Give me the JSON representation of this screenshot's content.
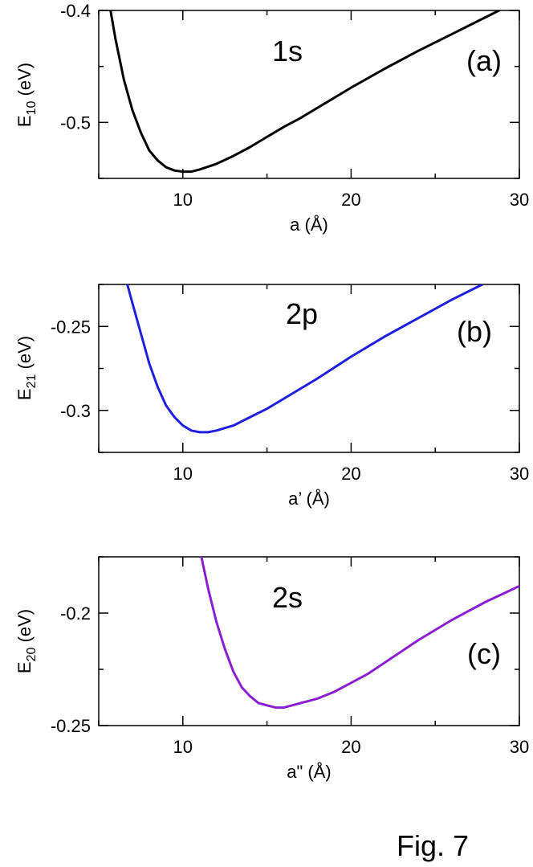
{
  "caption": "Fig. 7",
  "chart_data": [
    {
      "type": "line",
      "panel_tag": "(a)",
      "orbital_label": "1s",
      "xlabel": "a (Å)",
      "ylabel": {
        "main": "E",
        "sub": "10",
        "unit": " (eV)"
      },
      "xlim": [
        5,
        30
      ],
      "ylim": [
        -0.55,
        -0.4
      ],
      "xticks": [
        {
          "v": 10,
          "label": "10"
        },
        {
          "v": 20,
          "label": "20"
        },
        {
          "v": 30,
          "label": "30"
        }
      ],
      "yticks": [
        {
          "v": -0.4,
          "label": "-0.4"
        },
        {
          "v": -0.5,
          "label": "-0.5"
        }
      ],
      "color": "#000000",
      "series": [
        {
          "x": [
            5.7,
            6,
            6.5,
            7,
            7.5,
            8,
            8.5,
            9,
            9.5,
            10,
            10.5,
            11,
            12,
            13,
            14,
            15,
            16,
            17,
            18,
            20,
            22,
            24,
            26,
            28,
            28.8
          ],
          "y": [
            -0.4,
            -0.426,
            -0.462,
            -0.489,
            -0.509,
            -0.525,
            -0.534,
            -0.54,
            -0.543,
            -0.544,
            -0.544,
            -0.542,
            -0.537,
            -0.53,
            -0.522,
            -0.513,
            -0.504,
            -0.496,
            -0.487,
            -0.469,
            -0.452,
            -0.436,
            -0.421,
            -0.406,
            -0.4
          ]
        }
      ]
    },
    {
      "type": "line",
      "panel_tag": "(b)",
      "orbital_label": "2p",
      "xlabel": "a’ (Å)",
      "ylabel": {
        "main": "E",
        "sub": "21",
        "unit": " (eV)"
      },
      "xlim": [
        5,
        30
      ],
      "ylim": [
        -0.325,
        -0.225
      ],
      "xticks": [
        {
          "v": 10,
          "label": "10"
        },
        {
          "v": 20,
          "label": "20"
        },
        {
          "v": 30,
          "label": "30"
        }
      ],
      "yticks": [
        {
          "v": -0.25,
          "label": "-0.25"
        },
        {
          "v": -0.3,
          "label": "-0.3"
        }
      ],
      "color": "#1f1fe0",
      "series": [
        {
          "x": [
            6.7,
            7,
            7.5,
            8,
            8.5,
            9,
            9.5,
            10,
            10.5,
            11,
            11.5,
            12,
            13,
            14,
            15,
            16,
            17,
            18,
            20,
            22,
            24,
            26,
            27.8
          ],
          "y": [
            -0.225,
            -0.236,
            -0.254,
            -0.272,
            -0.286,
            -0.297,
            -0.304,
            -0.309,
            -0.312,
            -0.313,
            -0.313,
            -0.312,
            -0.309,
            -0.304,
            -0.299,
            -0.293,
            -0.287,
            -0.281,
            -0.268,
            -0.256,
            -0.245,
            -0.234,
            -0.225
          ]
        }
      ]
    },
    {
      "type": "line",
      "panel_tag": "(c)",
      "orbital_label": "2s",
      "xlabel": "a\" (Å)",
      "ylabel": {
        "main": "E",
        "sub": "20",
        "unit": " (eV)"
      },
      "xlim": [
        5,
        30
      ],
      "ylim": [
        -0.25,
        -0.175
      ],
      "xticks": [
        {
          "v": 10,
          "label": "10"
        },
        {
          "v": 20,
          "label": "20"
        },
        {
          "v": 30,
          "label": "30"
        }
      ],
      "yticks": [
        {
          "v": -0.2,
          "label": "-0.2"
        },
        {
          "v": -0.25,
          "label": "-0.25"
        }
      ],
      "color": "#8a1fd0",
      "series": [
        {
          "x": [
            11.1,
            11.5,
            12,
            12.5,
            13,
            13.5,
            14,
            14.5,
            15,
            15.5,
            16,
            16.5,
            17,
            18,
            19,
            20,
            21,
            22,
            23,
            24,
            26,
            28,
            30
          ],
          "y": [
            -0.175,
            -0.189,
            -0.204,
            -0.216,
            -0.226,
            -0.233,
            -0.237,
            -0.24,
            -0.241,
            -0.242,
            -0.242,
            -0.241,
            -0.24,
            -0.238,
            -0.235,
            -0.231,
            -0.227,
            -0.222,
            -0.217,
            -0.212,
            -0.203,
            -0.195,
            -0.188
          ]
        }
      ]
    }
  ]
}
